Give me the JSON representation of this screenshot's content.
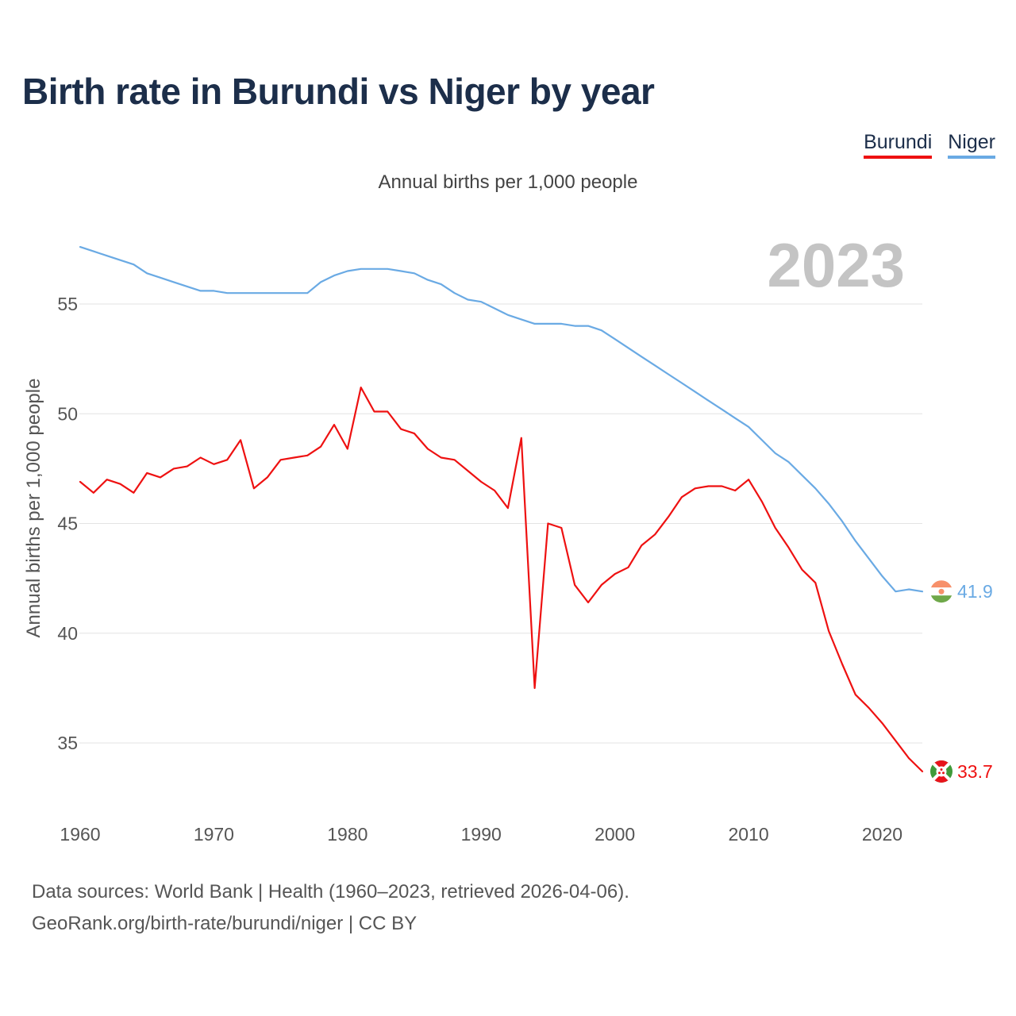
{
  "page": {
    "title": "Birth rate in Burundi vs Niger by year",
    "subtitle": "Annual births per 1,000 people",
    "source_line1": "Data sources: World Bank | Health (1960–2023, retrieved 2026-04-06).",
    "source_line2": "GeoRank.org/birth-rate/burundi/niger | CC BY"
  },
  "legend": [
    {
      "name": "Burundi",
      "color": "#ee1111"
    },
    {
      "name": "Niger",
      "color": "#6aaae4"
    }
  ],
  "chart_data": {
    "type": "line",
    "title": "Birth rate in Burundi vs Niger by year",
    "subtitle": "Annual births per 1,000 people",
    "xlabel": "",
    "ylabel": "Annual births per 1,000 people",
    "year_label": "2023",
    "xlim": [
      1960,
      2023
    ],
    "ylim": [
      32,
      58
    ],
    "xticks": [
      1960,
      1970,
      1980,
      1990,
      2000,
      2010,
      2020
    ],
    "yticks": [
      35,
      40,
      45,
      50,
      55
    ],
    "grid": true,
    "legend_position": "top-right",
    "x": [
      1960,
      1961,
      1962,
      1963,
      1964,
      1965,
      1966,
      1967,
      1968,
      1969,
      1970,
      1971,
      1972,
      1973,
      1974,
      1975,
      1976,
      1977,
      1978,
      1979,
      1980,
      1981,
      1982,
      1983,
      1984,
      1985,
      1986,
      1987,
      1988,
      1989,
      1990,
      1991,
      1992,
      1993,
      1994,
      1995,
      1996,
      1997,
      1998,
      1999,
      2000,
      2001,
      2002,
      2003,
      2004,
      2005,
      2006,
      2007,
      2008,
      2009,
      2010,
      2011,
      2012,
      2013,
      2014,
      2015,
      2016,
      2017,
      2018,
      2019,
      2020,
      2021,
      2022,
      2023
    ],
    "series": [
      {
        "name": "Burundi",
        "color": "#ee1111",
        "end_label": "33.7",
        "values": [
          46.9,
          46.4,
          47.0,
          46.8,
          46.4,
          47.3,
          47.1,
          47.5,
          47.6,
          48.0,
          47.7,
          47.9,
          48.8,
          46.6,
          47.1,
          47.9,
          48.0,
          48.1,
          48.5,
          49.5,
          48.4,
          51.2,
          50.1,
          50.1,
          49.3,
          49.1,
          48.4,
          48.0,
          47.9,
          47.4,
          46.9,
          46.5,
          45.7,
          48.9,
          37.5,
          45.0,
          44.8,
          42.2,
          41.4,
          42.2,
          42.7,
          43.0,
          44.0,
          44.5,
          45.3,
          46.2,
          46.6,
          46.7,
          46.7,
          46.5,
          47.0,
          46.0,
          44.8,
          43.9,
          42.9,
          42.3,
          40.1,
          38.6,
          37.2,
          36.6,
          35.9,
          35.1,
          34.3,
          33.7
        ]
      },
      {
        "name": "Niger",
        "color": "#6aaae4",
        "end_label": "41.9",
        "values": [
          57.6,
          57.4,
          57.2,
          57.0,
          56.8,
          56.4,
          56.2,
          56.0,
          55.8,
          55.6,
          55.6,
          55.5,
          55.5,
          55.5,
          55.5,
          55.5,
          55.5,
          55.5,
          56.0,
          56.3,
          56.5,
          56.6,
          56.6,
          56.6,
          56.5,
          56.4,
          56.1,
          55.9,
          55.5,
          55.2,
          55.1,
          54.8,
          54.5,
          54.3,
          54.1,
          54.1,
          54.1,
          54.0,
          54.0,
          53.8,
          53.4,
          53.0,
          52.6,
          52.2,
          51.8,
          51.4,
          51.0,
          50.6,
          50.2,
          49.8,
          49.4,
          48.8,
          48.2,
          47.8,
          47.2,
          46.6,
          45.9,
          45.1,
          44.2,
          43.4,
          42.6,
          41.9,
          42.0,
          41.9
        ]
      }
    ]
  }
}
